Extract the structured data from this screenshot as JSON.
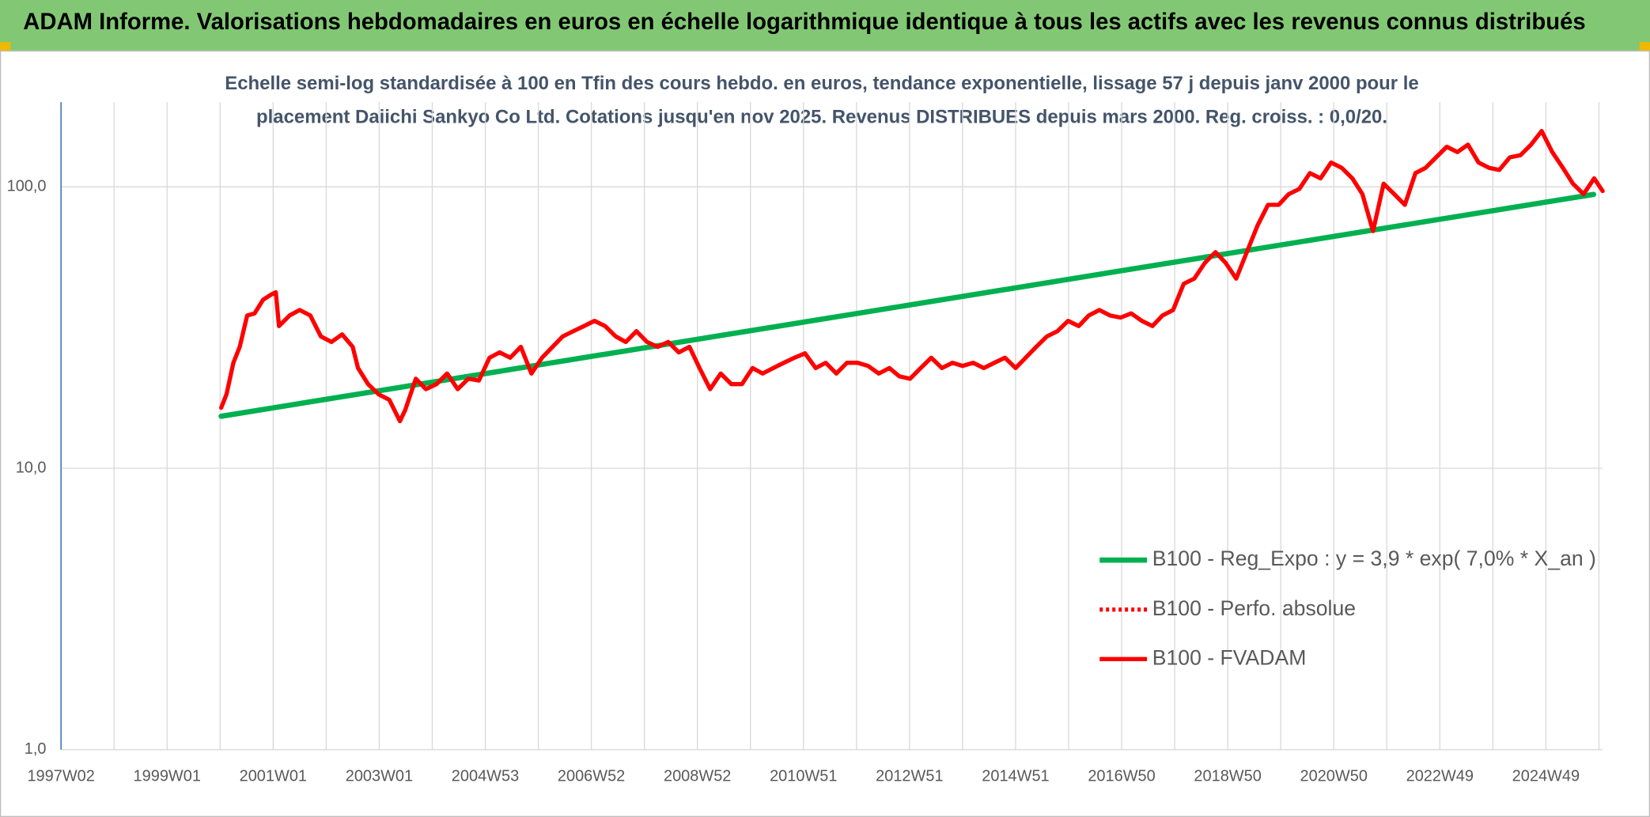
{
  "header": {
    "title": "ADAM Informe. Valorisations hebdomadaires en euros en échelle logarithmique identique à tous les actifs avec les revenus connus distribués"
  },
  "chart_data": {
    "type": "line",
    "title": [
      "Echelle semi-log standardisée à 100 en Tfin des cours hebdo. en euros, tendance exponentielle, lissage 57 j depuis janv 2000 pour le",
      "placement Daiichi Sankyo Co Ltd. Cotations jusqu'en nov 2025. Revenus DISTRIBUES depuis mars 2000. Reg. croiss. : 0,0/20."
    ],
    "log_scale": true,
    "grid": true,
    "legend": "right",
    "xlim": [
      1997,
      2026.07
    ],
    "xticks": [
      {
        "value": 1997,
        "label": "1997W02"
      },
      {
        "value": 1999,
        "label": "1999W01"
      },
      {
        "value": 2001,
        "label": "2001W01"
      },
      {
        "value": 2003,
        "label": "2003W01"
      },
      {
        "value": 2005,
        "label": "2004W53"
      },
      {
        "value": 2007,
        "label": "2006W52"
      },
      {
        "value": 2009,
        "label": "2008W52"
      },
      {
        "value": 2011,
        "label": "2010W51"
      },
      {
        "value": 2013,
        "label": "2012W51"
      },
      {
        "value": 2015,
        "label": "2014W51"
      },
      {
        "value": 2017,
        "label": "2016W50"
      },
      {
        "value": 2019,
        "label": "2018W50"
      },
      {
        "value": 2021,
        "label": "2020W50"
      },
      {
        "value": 2023,
        "label": "2022W49"
      },
      {
        "value": 2025,
        "label": "2024W49"
      }
    ],
    "xminor": [
      1998,
      2000,
      2002,
      2004,
      2006,
      2008,
      2010,
      2012,
      2014,
      2016,
      2018,
      2020,
      2022,
      2024,
      2026
    ],
    "ylim": [
      1,
      200
    ],
    "yticks": [
      {
        "value": 1,
        "label": "1,0"
      },
      {
        "value": 10,
        "label": "10,0"
      },
      {
        "value": 100,
        "label": "100,0"
      }
    ],
    "series": [
      {
        "name": "B100 - Reg_Expo : y = 3,9 * exp( 7,0% *  X_an )",
        "color": "#00b050",
        "style": "solid",
        "x": [
          2000.02,
          2025.9
        ],
        "values": [
          15.3,
          94
        ]
      },
      {
        "name": "B100 - Perfo. absolue",
        "color": "#ff0000",
        "style": "dotted",
        "x": [],
        "values": []
      },
      {
        "name": "B100 - FVADAM",
        "color": "#ff0000",
        "style": "solid",
        "x": [
          2000.02,
          2000.12,
          2000.25,
          2000.37,
          2000.51,
          2000.65,
          2000.81,
          2000.97,
          2001.05,
          2001.11,
          2001.31,
          2001.5,
          2001.7,
          2001.9,
          2002.1,
          2002.3,
          2002.5,
          2002.6,
          2002.79,
          2002.99,
          2003.19,
          2003.39,
          2003.49,
          2003.69,
          2003.88,
          2004.08,
          2004.28,
          2004.48,
          2004.68,
          2004.88,
          2005.08,
          2005.27,
          2005.47,
          2005.67,
          2005.87,
          2006.07,
          2006.27,
          2006.46,
          2006.66,
          2006.86,
          2007.06,
          2007.26,
          2007.46,
          2007.65,
          2007.85,
          2008.05,
          2008.25,
          2008.45,
          2008.65,
          2008.85,
          2009.04,
          2009.24,
          2009.44,
          2009.64,
          2009.84,
          2010.04,
          2010.23,
          2010.43,
          2010.63,
          2010.83,
          2011.03,
          2011.23,
          2011.42,
          2011.62,
          2011.82,
          2012.02,
          2012.22,
          2012.42,
          2012.62,
          2012.81,
          2013.01,
          2013.21,
          2013.41,
          2013.61,
          2013.81,
          2014.0,
          2014.2,
          2014.4,
          2014.6,
          2014.8,
          2015.0,
          2015.19,
          2015.39,
          2015.59,
          2015.79,
          2015.99,
          2016.19,
          2016.38,
          2016.58,
          2016.78,
          2016.98,
          2017.18,
          2017.38,
          2017.58,
          2017.77,
          2017.97,
          2018.17,
          2018.37,
          2018.57,
          2018.77,
          2018.96,
          2019.16,
          2019.36,
          2019.56,
          2019.76,
          2019.96,
          2020.15,
          2020.35,
          2020.55,
          2020.75,
          2020.95,
          2021.15,
          2021.35,
          2021.54,
          2021.74,
          2021.94,
          2022.14,
          2022.34,
          2022.54,
          2022.73,
          2022.93,
          2023.13,
          2023.33,
          2023.53,
          2023.73,
          2023.93,
          2024.12,
          2024.32,
          2024.52,
          2024.72,
          2024.92,
          2025.12,
          2025.32,
          2025.51,
          2025.71,
          2025.91,
          2026.07
        ],
        "values": [
          16.4,
          18.3,
          23.7,
          27.0,
          34.9,
          35.5,
          39.7,
          41.5,
          42.2,
          32.0,
          34.9,
          36.5,
          34.9,
          29.4,
          28.1,
          29.9,
          27.0,
          22.7,
          19.9,
          18.3,
          17.5,
          14.7,
          16.1,
          20.8,
          19.1,
          19.9,
          21.7,
          19.1,
          20.8,
          20.5,
          24.7,
          25.8,
          24.7,
          27.0,
          21.7,
          24.7,
          27.0,
          29.4,
          30.7,
          32.0,
          33.4,
          32.0,
          29.4,
          28.1,
          30.7,
          28.1,
          27.0,
          28.1,
          25.8,
          27.0,
          22.7,
          19.1,
          21.7,
          19.9,
          19.9,
          22.7,
          21.7,
          22.7,
          23.7,
          24.7,
          25.6,
          22.7,
          23.7,
          21.7,
          23.7,
          23.7,
          23.1,
          21.7,
          22.7,
          21.2,
          20.8,
          22.7,
          24.7,
          22.7,
          23.7,
          23.1,
          23.7,
          22.7,
          23.7,
          24.7,
          22.7,
          24.7,
          27.0,
          29.4,
          30.7,
          33.4,
          32.0,
          34.9,
          36.5,
          34.9,
          34.3,
          35.5,
          33.4,
          32.0,
          34.9,
          36.5,
          45.2,
          47.2,
          53.7,
          58.6,
          53.7,
          47.2,
          58.6,
          72.7,
          86.3,
          86.3,
          94.2,
          98.3,
          111.9,
          107.2,
          122,
          116.8,
          107.2,
          94.2,
          69.6,
          102.6,
          94.2,
          86.3,
          111.9,
          116.8,
          127.3,
          138.8,
          132.9,
          141.2,
          122,
          116.8,
          114.8,
          127.3,
          129.5,
          141.2,
          157.9,
          132.9,
          116.8,
          102.6,
          94.2,
          107.2,
          96.6
        ]
      }
    ]
  }
}
